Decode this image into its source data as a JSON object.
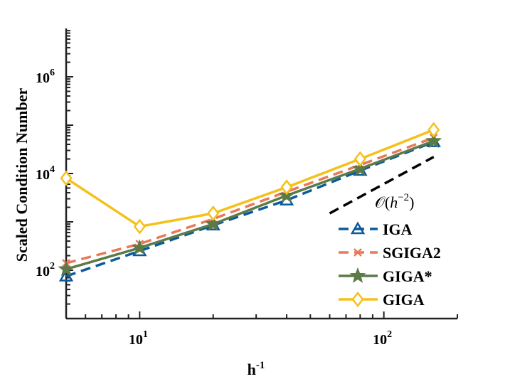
{
  "chart_data": {
    "type": "line",
    "xlabel": "h",
    "xlabel_sup": "-1",
    "ylabel": "Scaled Condition Number",
    "xscale": "log",
    "yscale": "log",
    "xlim": [
      5,
      200
    ],
    "ylim": [
      10,
      10000000
    ],
    "x_major_ticks": [
      10,
      100
    ],
    "x_tick_labels": [
      {
        "base": "10",
        "exp": "1"
      },
      {
        "base": "10",
        "exp": "2"
      }
    ],
    "y_major_ticks": [
      100,
      10000,
      1000000
    ],
    "y_tick_labels": [
      {
        "base": "10",
        "exp": "2"
      },
      {
        "base": "10",
        "exp": "4"
      },
      {
        "base": "10",
        "exp": "6"
      }
    ],
    "grid": false,
    "legend_position": "lower-right",
    "x": [
      5,
      10,
      20,
      40,
      80,
      160
    ],
    "series": [
      {
        "name": "IGA",
        "values": [
          75,
          250,
          850,
          2800,
          11500,
          45000
        ],
        "color": "#0b5a9a",
        "dash": "dashed",
        "marker": "triangle"
      },
      {
        "name": "SGIGA2",
        "values": [
          140,
          350,
          1150,
          4200,
          15000,
          55000
        ],
        "color": "#e8795a",
        "dash": "dashed",
        "marker": "x"
      },
      {
        "name": "GIGA*",
        "values": [
          105,
          290,
          900,
          3500,
          12500,
          47000
        ],
        "color": "#5b7a46",
        "dash": "solid",
        "marker": "star"
      },
      {
        "name": "GIGA",
        "values": [
          8000,
          800,
          1500,
          5200,
          20000,
          80000
        ],
        "color": "#f4c11a",
        "dash": "solid",
        "marker": "diamond"
      }
    ],
    "reference_line": {
      "label_prefix": "𝒪(",
      "label_var": "h",
      "label_exp": "−2",
      "label_suffix": ")",
      "x": [
        60,
        160
      ],
      "values": [
        1500,
        22000
      ],
      "color": "#000000",
      "dash": "dashed"
    }
  }
}
